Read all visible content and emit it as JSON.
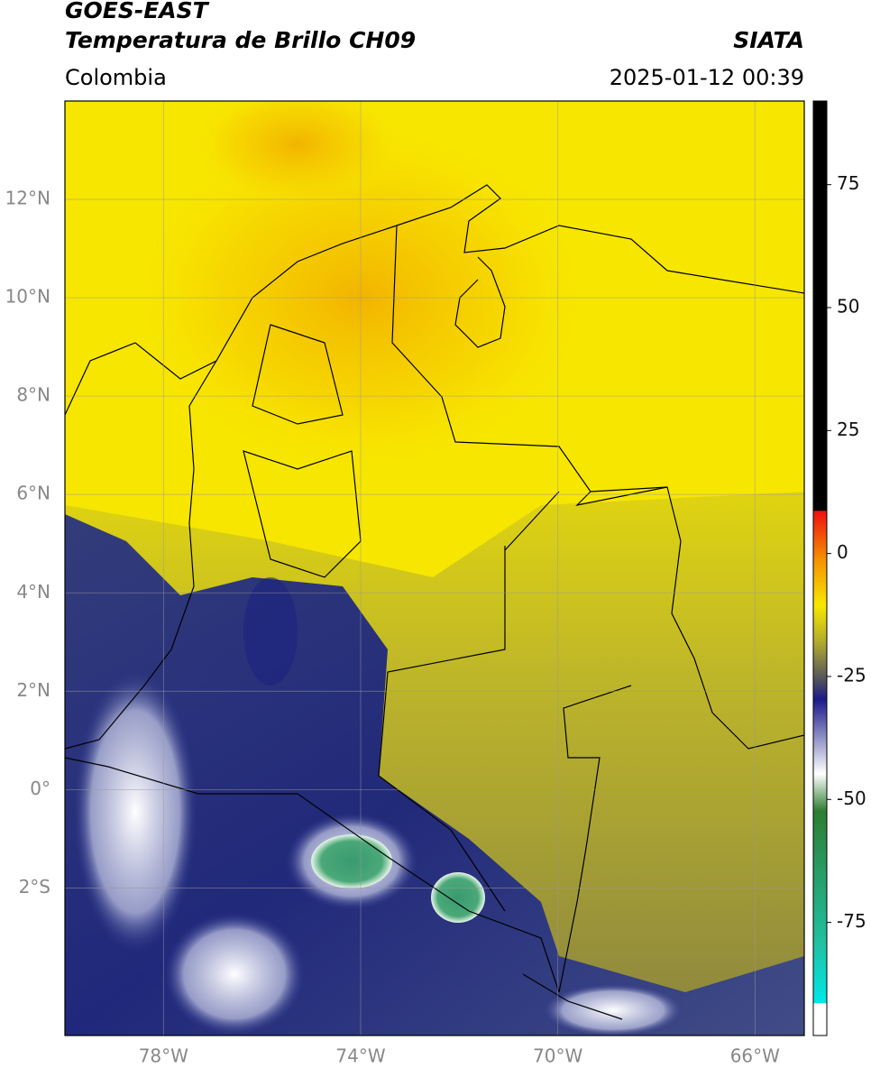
{
  "header": {
    "title": "GOES-EAST",
    "subtitle": "Temperatura de Brillo CH09",
    "source": "SIATA",
    "region": "Colombia",
    "datetime": "2025-01-12 00:39"
  },
  "map": {
    "lonlim": [
      -80,
      -65
    ],
    "latlim": [
      -5,
      14
    ],
    "lat_ticks": [
      {
        "value": 12,
        "label": "12°N"
      },
      {
        "value": 10,
        "label": "10°N"
      },
      {
        "value": 8,
        "label": "8°N"
      },
      {
        "value": 6,
        "label": "6°N"
      },
      {
        "value": 4,
        "label": "4°N"
      },
      {
        "value": 2,
        "label": "2°N"
      },
      {
        "value": 0,
        "label": "0°"
      },
      {
        "value": -2,
        "label": "2°S"
      }
    ],
    "lon_ticks": [
      {
        "value": -78,
        "label": "78°W"
      },
      {
        "value": -74,
        "label": "74°W"
      },
      {
        "value": -70,
        "label": "70°W"
      },
      {
        "value": -66,
        "label": "66°W"
      }
    ]
  },
  "colorbar": {
    "clim": [
      -98,
      92
    ],
    "ticks": [
      75,
      50,
      25,
      0,
      -25,
      -50,
      -75
    ]
  }
}
